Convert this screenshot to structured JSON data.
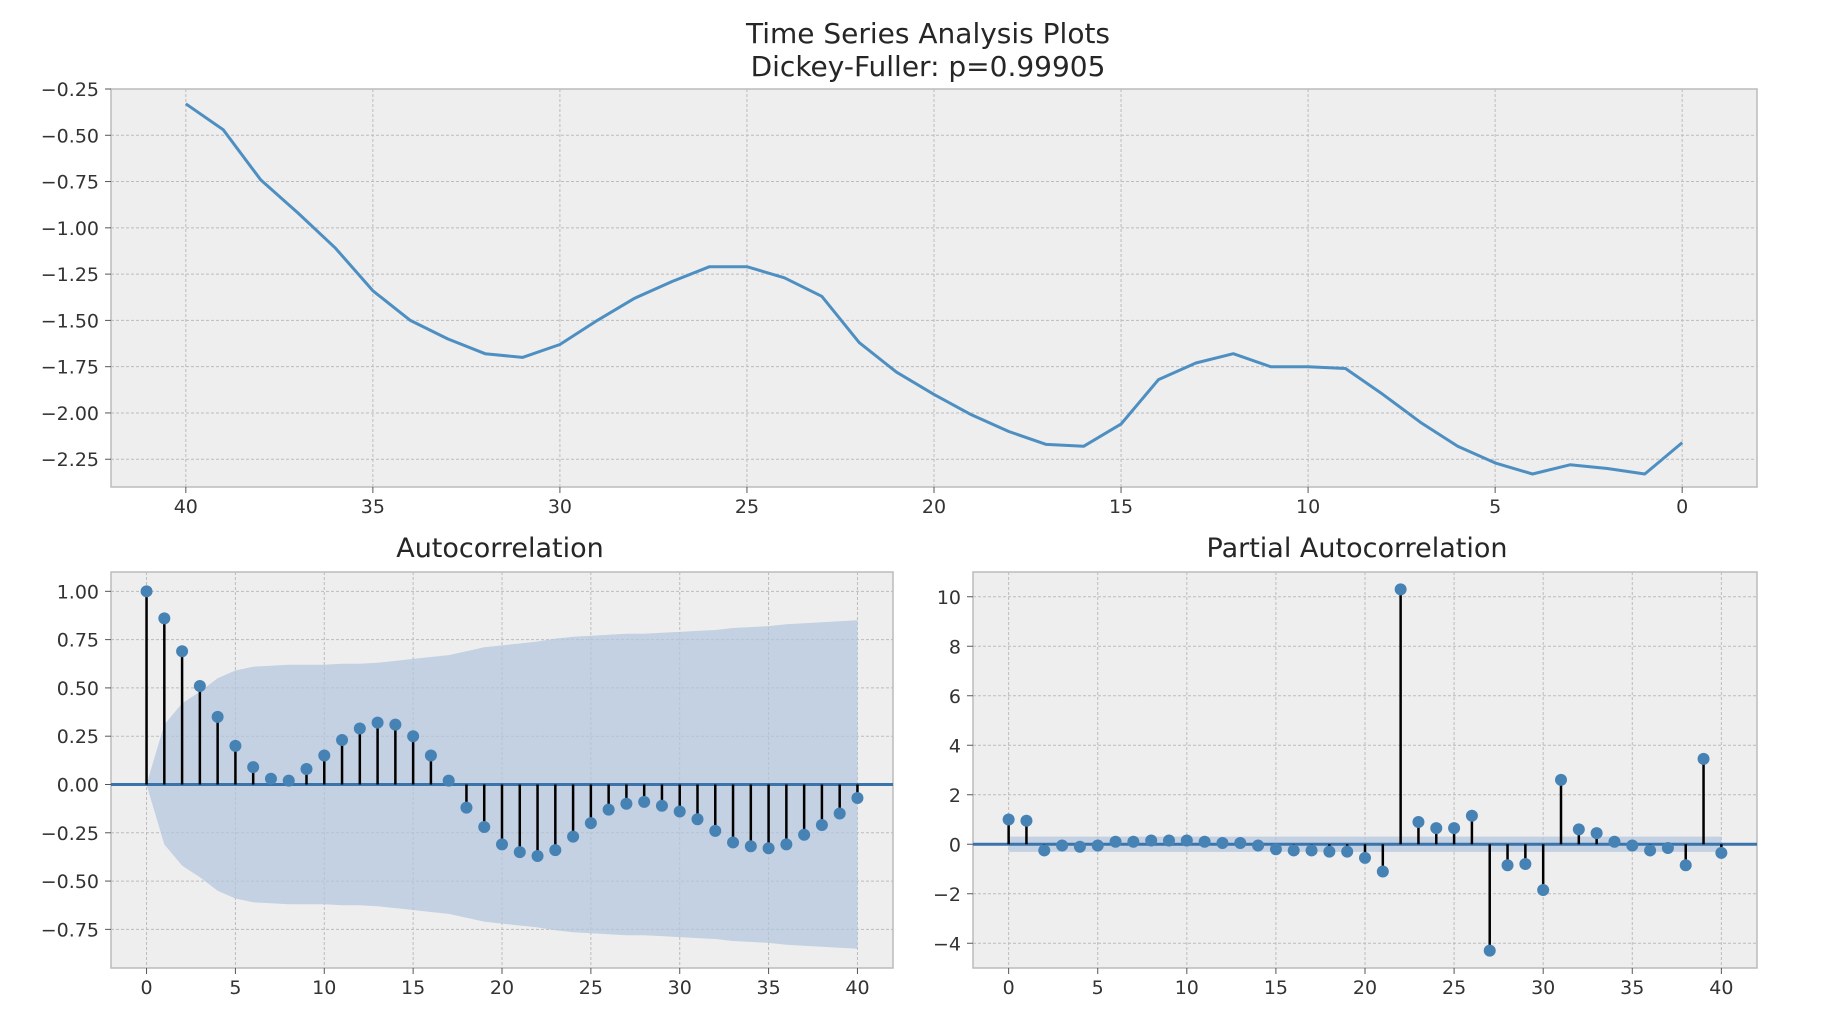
{
  "figure": {
    "suptitle": "Time Series Analysis Plots",
    "subtitle": "Dickey-Fuller: p=0.99905"
  },
  "colors": {
    "line": "#4e8fc2",
    "marker": "#4682b4",
    "stem": "#000000",
    "zero": "#3b74ab",
    "band": "#b0c4de",
    "axes_bg": "#eeeeee",
    "grid": "#bcbcbc"
  },
  "chart_data": [
    {
      "type": "line",
      "title": "",
      "xlim": [
        42,
        -2
      ],
      "ylim": [
        -2.4,
        -0.25
      ],
      "xticks": [
        40,
        35,
        30,
        25,
        20,
        15,
        10,
        5,
        0
      ],
      "yticks": [
        -0.25,
        -0.5,
        -0.75,
        -1.0,
        -1.25,
        -1.5,
        -1.75,
        -2.0,
        -2.25
      ],
      "grid": true,
      "x": [
        40,
        39,
        38,
        37,
        36,
        35,
        34,
        33,
        32,
        31,
        30,
        29,
        28,
        27,
        26,
        25,
        24,
        23,
        22,
        21,
        20,
        19,
        18,
        17,
        16,
        15,
        14,
        13,
        12,
        11,
        10,
        9,
        8,
        7,
        6,
        5,
        4,
        3,
        2,
        1,
        0
      ],
      "y": [
        -0.33,
        -0.47,
        -0.74,
        -0.92,
        -1.11,
        -1.34,
        -1.5,
        -1.6,
        -1.68,
        -1.7,
        -1.63,
        -1.5,
        -1.38,
        -1.29,
        -1.21,
        -1.21,
        -1.27,
        -1.37,
        -1.62,
        -1.78,
        -1.9,
        -2.01,
        -2.1,
        -2.17,
        -2.18,
        -2.06,
        -1.82,
        -1.73,
        -1.68,
        -1.75,
        -1.75,
        -1.76,
        -1.9,
        -2.05,
        -2.18,
        -2.27,
        -2.33,
        -2.28,
        -2.3,
        -2.33,
        -2.16
      ]
    },
    {
      "type": "stem",
      "title": "Autocorrelation",
      "xlim": [
        -2,
        42
      ],
      "ylim": [
        -0.95,
        1.1
      ],
      "xticks": [
        0,
        5,
        10,
        15,
        20,
        25,
        30,
        35,
        40
      ],
      "yticks": [
        1.0,
        0.75,
        0.5,
        0.25,
        0.0,
        -0.25,
        -0.5,
        -0.75
      ],
      "grid": true,
      "lags": [
        0,
        1,
        2,
        3,
        4,
        5,
        6,
        7,
        8,
        9,
        10,
        11,
        12,
        13,
        14,
        15,
        16,
        17,
        18,
        19,
        20,
        21,
        22,
        23,
        24,
        25,
        26,
        27,
        28,
        29,
        30,
        31,
        32,
        33,
        34,
        35,
        36,
        37,
        38,
        39,
        40
      ],
      "values": [
        1.0,
        0.86,
        0.69,
        0.51,
        0.35,
        0.2,
        0.09,
        0.03,
        0.02,
        0.08,
        0.15,
        0.23,
        0.29,
        0.32,
        0.31,
        0.25,
        0.15,
        0.02,
        -0.12,
        -0.22,
        -0.31,
        -0.35,
        -0.37,
        -0.34,
        -0.27,
        -0.2,
        -0.13,
        -0.1,
        -0.09,
        -0.11,
        -0.14,
        -0.18,
        -0.24,
        -0.3,
        -0.32,
        -0.33,
        -0.31,
        -0.26,
        -0.21,
        -0.15,
        -0.07
      ],
      "confidence_band": [
        0,
        0.31,
        0.42,
        0.48,
        0.55,
        0.59,
        0.61,
        0.615,
        0.62,
        0.62,
        0.62,
        0.625,
        0.625,
        0.63,
        0.64,
        0.65,
        0.66,
        0.67,
        0.69,
        0.71,
        0.72,
        0.73,
        0.74,
        0.755,
        0.765,
        0.77,
        0.775,
        0.78,
        0.78,
        0.785,
        0.79,
        0.795,
        0.8,
        0.81,
        0.815,
        0.82,
        0.83,
        0.835,
        0.84,
        0.845,
        0.85
      ]
    },
    {
      "type": "stem",
      "title": "Partial Autocorrelation",
      "xlim": [
        -2,
        42
      ],
      "ylim": [
        -5,
        11
      ],
      "xticks": [
        0,
        5,
        10,
        15,
        20,
        25,
        30,
        35,
        40
      ],
      "yticks": [
        10,
        8,
        6,
        4,
        2,
        0,
        -2,
        -4
      ],
      "grid": true,
      "lags": [
        0,
        1,
        2,
        3,
        4,
        5,
        6,
        7,
        8,
        9,
        10,
        11,
        12,
        13,
        14,
        15,
        16,
        17,
        18,
        19,
        20,
        21,
        22,
        23,
        24,
        25,
        26,
        27,
        28,
        29,
        30,
        31,
        32,
        33,
        34,
        35,
        36,
        37,
        38,
        39,
        40
      ],
      "values": [
        1.0,
        0.95,
        -0.25,
        -0.05,
        -0.1,
        -0.05,
        0.1,
        0.1,
        0.15,
        0.15,
        0.15,
        0.1,
        0.05,
        0.05,
        -0.05,
        -0.2,
        -0.25,
        -0.25,
        -0.3,
        -0.3,
        -0.55,
        -1.1,
        10.3,
        0.9,
        0.65,
        0.65,
        1.15,
        -4.3,
        -0.85,
        -0.8,
        -1.85,
        2.6,
        0.6,
        0.45,
        0.1,
        -0.05,
        -0.25,
        -0.15,
        -0.85,
        3.45,
        -0.35
      ],
      "confidence_band": [
        0.31,
        0.31,
        0.31,
        0.31,
        0.31,
        0.31,
        0.31,
        0.31,
        0.31,
        0.31,
        0.31,
        0.31,
        0.31,
        0.31,
        0.31,
        0.31,
        0.31,
        0.31,
        0.31,
        0.31,
        0.31,
        0.31,
        0.31,
        0.31,
        0.31,
        0.31,
        0.31,
        0.31,
        0.31,
        0.31,
        0.31,
        0.31,
        0.31,
        0.31,
        0.31,
        0.31,
        0.31,
        0.31,
        0.31,
        0.31,
        0.31
      ]
    }
  ]
}
